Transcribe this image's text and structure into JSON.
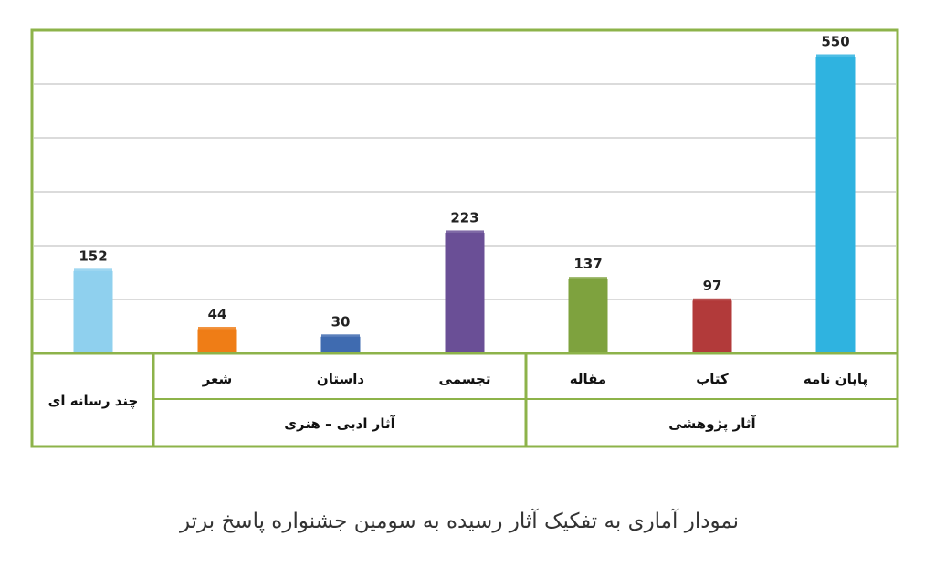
{
  "chart_data": {
    "type": "bar",
    "categories": [
      "چند رسانه ای",
      "شعر",
      "داستان",
      "تجسمی",
      "مقاله",
      "کتاب",
      "پایان نامه"
    ],
    "values": [
      152,
      44,
      30,
      223,
      137,
      97,
      550
    ],
    "groups": [
      {
        "label": "آثار ادبی – هنری",
        "categories": [
          "شعر",
          "داستان",
          "تجسمی"
        ]
      },
      {
        "label": "آثار پژوهشی",
        "categories": [
          "مقاله",
          "کتاب",
          "پایان نامه"
        ]
      }
    ],
    "ylim": [
      0,
      600
    ],
    "grid": true,
    "title": "",
    "xlabel": "",
    "ylabel": ""
  },
  "caption": "نمودار آماری به تفکیک آثار رسیده به سومین جشنواره پاسخ برتر",
  "colors": {
    "frame": "#8db34a",
    "grid": "#b7b7b7",
    "bars": [
      "#8fd0ee",
      "#ef7d16",
      "#3f6bb0",
      "#6a4f96",
      "#7ea23e",
      "#b23a3a",
      "#2fb3e0"
    ]
  }
}
